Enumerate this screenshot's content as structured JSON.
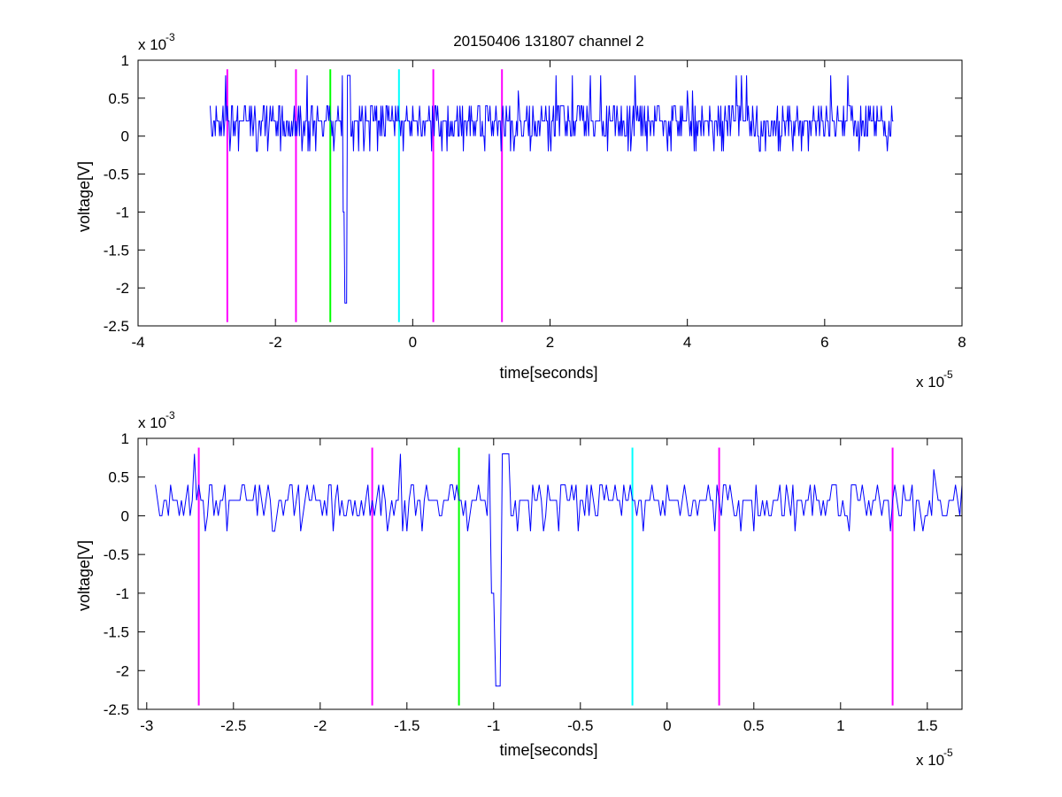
{
  "figure": {
    "title": "20150406 131807 channel 2"
  },
  "chart_data": [
    {
      "type": "line",
      "title": "20150406 131807 channel 2",
      "xlabel": "time[seconds]",
      "ylabel": "voltage[V]",
      "x_exponent_label": "x 10",
      "x_exponent": "-5",
      "y_exponent_label": "x 10",
      "y_exponent": "-3",
      "xlim": [
        -4,
        8
      ],
      "ylim": [
        -2.5,
        1
      ],
      "xticks": [
        -4,
        -2,
        0,
        2,
        4,
        6,
        8
      ],
      "xtick_labels": [
        "-4",
        "-2",
        "0",
        "2",
        "4",
        "6",
        "8"
      ],
      "yticks": [
        -2.5,
        -2,
        -1.5,
        -1,
        -0.5,
        0,
        0.5,
        1
      ],
      "ytick_labels": [
        "-2.5",
        "-2",
        "-1.5",
        "-1",
        "-0.5",
        "0",
        "0.5",
        "1"
      ],
      "grid": false,
      "markers": [
        {
          "x": -2.7,
          "color": "#ff00ff"
        },
        {
          "x": -1.7,
          "color": "#ff00ff"
        },
        {
          "x": -1.2,
          "color": "#00ff00"
        },
        {
          "x": -0.2,
          "color": "#00ffff"
        },
        {
          "x": 0.3,
          "color": "#ff00ff"
        },
        {
          "x": 1.3,
          "color": "#ff00ff"
        }
      ],
      "marker_ylim": [
        -2.45,
        0.88
      ],
      "signal": {
        "color": "#0000ff",
        "x_start": -2.95,
        "x_end": 7.0,
        "baseline": 0.2,
        "quantum": 0.2,
        "spike": {
          "x": -0.97,
          "min": -2.2,
          "max": 0.8
        }
      }
    },
    {
      "type": "line",
      "title": "",
      "xlabel": "time[seconds]",
      "ylabel": "voltage[V]",
      "x_exponent_label": "x 10",
      "x_exponent": "-5",
      "y_exponent_label": "x 10",
      "y_exponent": "-3",
      "xlim": [
        -3.05,
        1.7
      ],
      "ylim": [
        -2.5,
        1
      ],
      "xticks": [
        -3,
        -2.5,
        -2,
        -1.5,
        -1,
        -0.5,
        0,
        0.5,
        1,
        1.5
      ],
      "xtick_labels": [
        "-3",
        "-2.5",
        "-2",
        "-1.5",
        "-1",
        "-0.5",
        "0",
        "0.5",
        "1",
        "1.5"
      ],
      "yticks": [
        -2.5,
        -2,
        -1.5,
        -1,
        -0.5,
        0,
        0.5,
        1
      ],
      "ytick_labels": [
        "-2.5",
        "-2",
        "-1.5",
        "-1",
        "-0.5",
        "0",
        "0.5",
        "1"
      ],
      "grid": false,
      "markers": [
        {
          "x": -2.7,
          "color": "#ff00ff"
        },
        {
          "x": -1.7,
          "color": "#ff00ff"
        },
        {
          "x": -1.2,
          "color": "#00ff00"
        },
        {
          "x": -0.2,
          "color": "#00ffff"
        },
        {
          "x": 0.3,
          "color": "#ff00ff"
        },
        {
          "x": 1.3,
          "color": "#ff00ff"
        }
      ],
      "marker_ylim": [
        -2.45,
        0.88
      ],
      "signal": {
        "color": "#0000ff",
        "x_start": -2.95,
        "x_end": 1.7,
        "baseline": 0.2,
        "quantum": 0.2,
        "spike": {
          "x": -0.97,
          "min": -2.2,
          "max": 0.8
        }
      }
    }
  ]
}
